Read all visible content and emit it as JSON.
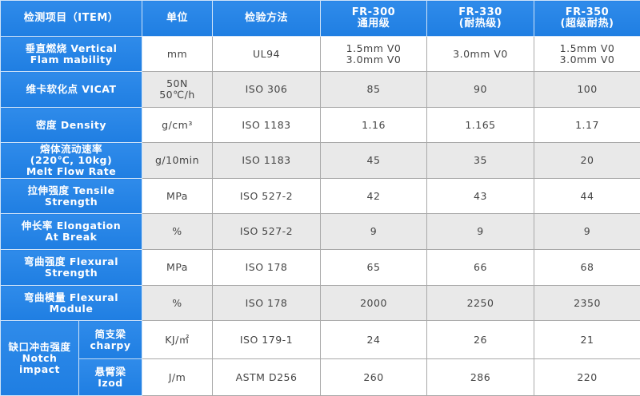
{
  "header": {
    "item": "检测项目（ITEM）",
    "unit": "单位",
    "method": "检验方法",
    "products": [
      "FR-300\n通用级",
      "FR-330\n(耐热级)",
      "FR-350\n(超级耐热)"
    ]
  },
  "rows": [
    {
      "item": "垂直燃烧 Vertical\nFlam mability",
      "unit": "mm",
      "method": "UL94",
      "values": [
        "1.5mm V0\n3.0mm V0",
        "3.0mm V0",
        "1.5mm V0\n3.0mm V0"
      ]
    },
    {
      "item": "维卡软化点 VICAT",
      "unit": "50N\n50℃/h",
      "method": "ISO 306",
      "values": [
        "85",
        "90",
        "100"
      ]
    },
    {
      "item": "密度 Density",
      "unit": "g/cm³",
      "method": "ISO 1183",
      "values": [
        "1.16",
        "1.165",
        "1.17"
      ]
    },
    {
      "item": "熔体流动速率\n(220℃, 10kg)\nMelt Flow Rate",
      "unit": "g/10min",
      "method": "ISO 1183",
      "values": [
        "45",
        "35",
        "20"
      ]
    },
    {
      "item": "拉伸强度 Tensile\nStrength",
      "unit": "MPa",
      "method": "ISO 527-2",
      "values": [
        "42",
        "43",
        "44"
      ]
    },
    {
      "item": "伸长率 Elongation\nAt Break",
      "unit": "%",
      "method": "ISO 527-2",
      "values": [
        "9",
        "9",
        "9"
      ]
    },
    {
      "item": "弯曲强度 Flexural\nStrength",
      "unit": "MPa",
      "method": "ISO 178",
      "values": [
        "65",
        "66",
        "68"
      ]
    },
    {
      "item": "弯曲模量 Flexural\nModule",
      "unit": "%",
      "method": "ISO 178",
      "values": [
        "2000",
        "2250",
        "2350"
      ]
    }
  ],
  "impact": {
    "item": "缺口冲击强度\nNotch\nimpact",
    "rows": [
      {
        "sub": "简支梁\ncharpy",
        "unit": "KJ/㎡",
        "method": "ISO 179-1",
        "values": [
          "24",
          "26",
          "21"
        ]
      },
      {
        "sub": "悬臂梁\nIzod",
        "unit": "J/m",
        "method": "ASTM D256",
        "values": [
          "260",
          "286",
          "220"
        ]
      }
    ]
  }
}
